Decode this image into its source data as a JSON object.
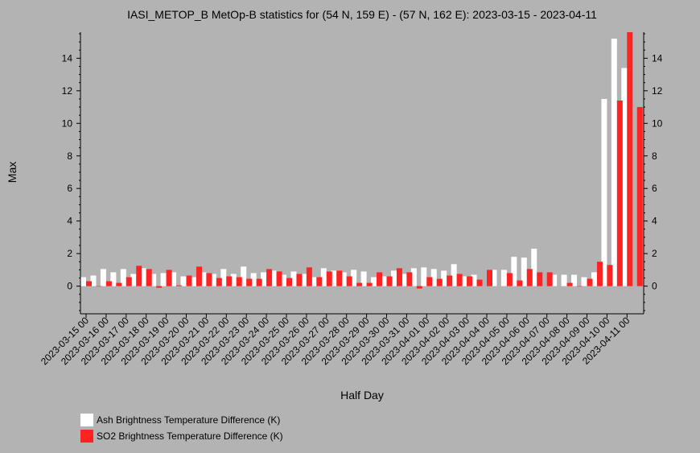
{
  "chart_data": {
    "type": "bar",
    "title": "IASI_METOP_B MetOp-B statistics for (54 N, 159 E) - (57 N, 162 E): 2023-03-15 - 2023-04-11",
    "xlabel": "Half Day",
    "ylabel": "Max",
    "ylim": [
      -1.7,
      15.6
    ],
    "yticks": [
      0,
      2,
      4,
      6,
      8,
      10,
      12,
      14
    ],
    "categories": [
      "2023-03-15 00",
      "2023-03-15 12",
      "2023-03-16 00",
      "2023-03-16 12",
      "2023-03-17 00",
      "2023-03-17 12",
      "2023-03-18 00",
      "2023-03-18 12",
      "2023-03-19 00",
      "2023-03-19 12",
      "2023-03-20 00",
      "2023-03-20 12",
      "2023-03-21 00",
      "2023-03-21 12",
      "2023-03-22 00",
      "2023-03-22 12",
      "2023-03-23 00",
      "2023-03-23 12",
      "2023-03-24 00",
      "2023-03-24 12",
      "2023-03-25 00",
      "2023-03-25 12",
      "2023-03-26 00",
      "2023-03-26 12",
      "2023-03-27 00",
      "2023-03-27 12",
      "2023-03-28 00",
      "2023-03-28 12",
      "2023-03-29 00",
      "2023-03-29 12",
      "2023-03-30 00",
      "2023-03-30 12",
      "2023-03-31 00",
      "2023-03-31 12",
      "2023-04-01 00",
      "2023-04-01 12",
      "2023-04-02 00",
      "2023-04-02 12",
      "2023-04-03 00",
      "2023-04-03 12",
      "2023-04-04 00",
      "2023-04-04 12",
      "2023-04-05 00",
      "2023-04-05 12",
      "2023-04-06 00",
      "2023-04-06 12",
      "2023-04-07 00",
      "2023-04-07 12",
      "2023-04-08 00",
      "2023-04-08 12",
      "2023-04-09 00",
      "2023-04-09 12",
      "2023-04-10 00",
      "2023-04-10 12",
      "2023-04-11 00",
      "2023-04-11 12"
    ],
    "tick_labels": [
      "2023-03-15 00",
      "2023-03-16 00",
      "2023-03-17 00",
      "2023-03-18 00",
      "2023-03-19 00",
      "2023-03-20 00",
      "2023-03-21 00",
      "2023-03-22 00",
      "2023-03-23 00",
      "2023-03-24 00",
      "2023-03-25 00",
      "2023-03-26 00",
      "2023-03-27 00",
      "2023-03-28 00",
      "2023-03-29 00",
      "2023-03-30 00",
      "2023-03-31 00",
      "2023-04-01 00",
      "2023-04-02 00",
      "2023-04-03 00",
      "2023-04-04 00",
      "2023-04-05 00",
      "2023-04-06 00",
      "2023-04-07 00",
      "2023-04-08 00",
      "2023-04-09 00",
      "2023-04-10 00",
      "2023-04-11 00"
    ],
    "series": [
      {
        "name": "Ash Brightness Temperature Difference (K)",
        "color": "#ffffff",
        "values": [
          0.55,
          0.65,
          1.05,
          0.85,
          1.05,
          0.75,
          1.1,
          0.75,
          0.8,
          0.85,
          0.6,
          0.55,
          0.85,
          0.75,
          1.05,
          0.75,
          1.2,
          0.8,
          0.85,
          0.95,
          0.7,
          0.9,
          0.75,
          0.55,
          1.1,
          0.95,
          0.85,
          1.0,
          0.9,
          0.55,
          0.6,
          0.95,
          0.75,
          1.1,
          1.15,
          1.05,
          0.95,
          1.35,
          0.6,
          0.7,
          null,
          1.0,
          1.0,
          1.8,
          1.75,
          2.3,
          null,
          0.7,
          0.7,
          0.7,
          0.55,
          0.85,
          11.5,
          15.2,
          13.4,
          null
        ]
      },
      {
        "name": "SO2 Brightness Temperature Difference (K)",
        "color": "#ff2222",
        "values": [
          0.3,
          0.0,
          0.3,
          0.2,
          0.55,
          1.25,
          1.05,
          -0.1,
          1.0,
          0.05,
          0.65,
          1.2,
          0.8,
          0.5,
          0.6,
          0.55,
          0.45,
          0.45,
          1.05,
          0.9,
          0.5,
          0.75,
          1.15,
          0.55,
          0.9,
          0.95,
          0.6,
          0.2,
          0.2,
          0.85,
          0.6,
          1.1,
          0.85,
          -0.15,
          0.55,
          0.45,
          0.65,
          0.75,
          0.6,
          0.4,
          1.0,
          null,
          0.8,
          0.35,
          1.05,
          0.85,
          0.85,
          null,
          0.2,
          0.0,
          0.45,
          1.5,
          1.3,
          11.4,
          15.6,
          11.0
        ]
      }
    ],
    "legend_position": "bottom-left",
    "grid": false
  }
}
